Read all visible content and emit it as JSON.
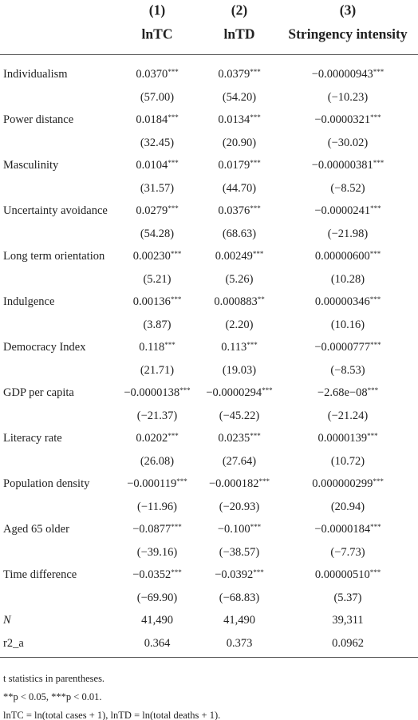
{
  "table": {
    "columns": [
      {
        "number": "(1)",
        "name": "lnTC"
      },
      {
        "number": "(2)",
        "name": "lnTD"
      },
      {
        "number": "(3)",
        "name": "Stringency intensity"
      }
    ],
    "rows": [
      {
        "label": "Individualism",
        "cells": [
          {
            "coef": "0.0370",
            "stars": "***"
          },
          {
            "coef": "0.0379",
            "stars": "***"
          },
          {
            "coef": "−0.00000943",
            "stars": "***"
          }
        ],
        "t": [
          "(57.00)",
          "(54.20)",
          "(−10.23)"
        ]
      },
      {
        "label": "Power distance",
        "cells": [
          {
            "coef": "0.0184",
            "stars": "***"
          },
          {
            "coef": "0.0134",
            "stars": "***"
          },
          {
            "coef": "−0.0000321",
            "stars": "***"
          }
        ],
        "t": [
          "(32.45)",
          "(20.90)",
          "(−30.02)"
        ]
      },
      {
        "label": "Masculinity",
        "cells": [
          {
            "coef": "0.0104",
            "stars": "***"
          },
          {
            "coef": "0.0179",
            "stars": "***"
          },
          {
            "coef": "−0.00000381",
            "stars": "***"
          }
        ],
        "t": [
          "(31.57)",
          "(44.70)",
          "(−8.52)"
        ]
      },
      {
        "label": "Uncertainty avoidance",
        "cells": [
          {
            "coef": "0.0279",
            "stars": "***"
          },
          {
            "coef": "0.0376",
            "stars": "***"
          },
          {
            "coef": "−0.0000241",
            "stars": "***"
          }
        ],
        "t": [
          "(54.28)",
          "(68.63)",
          "(−21.98)"
        ]
      },
      {
        "label": "Long term orientation",
        "cells": [
          {
            "coef": "0.00230",
            "stars": "***"
          },
          {
            "coef": "0.00249",
            "stars": "***"
          },
          {
            "coef": "0.00000600",
            "stars": "***"
          }
        ],
        "t": [
          "(5.21)",
          "(5.26)",
          "(10.28)"
        ]
      },
      {
        "label": "Indulgence",
        "cells": [
          {
            "coef": "0.00136",
            "stars": "***"
          },
          {
            "coef": "0.000883",
            "stars": "**"
          },
          {
            "coef": "0.00000346",
            "stars": "***"
          }
        ],
        "t": [
          "(3.87)",
          "(2.20)",
          "(10.16)"
        ]
      },
      {
        "label": "Democracy Index",
        "cells": [
          {
            "coef": "0.118",
            "stars": "***"
          },
          {
            "coef": "0.113",
            "stars": "***"
          },
          {
            "coef": "−0.0000777",
            "stars": "***"
          }
        ],
        "t": [
          "(21.71)",
          "(19.03)",
          "(−8.53)"
        ]
      },
      {
        "label": "GDP per capita",
        "cells": [
          {
            "coef": "−0.0000138",
            "stars": "***"
          },
          {
            "coef": "−0.0000294",
            "stars": "***"
          },
          {
            "coef": "−2.68e−08",
            "stars": "***"
          }
        ],
        "t": [
          "(−21.37)",
          "(−45.22)",
          "(−21.24)"
        ]
      },
      {
        "label": "Literacy rate",
        "cells": [
          {
            "coef": "0.0202",
            "stars": "***"
          },
          {
            "coef": "0.0235",
            "stars": "***"
          },
          {
            "coef": "0.0000139",
            "stars": "***"
          }
        ],
        "t": [
          "(26.08)",
          "(27.64)",
          "(10.72)"
        ]
      },
      {
        "label": "Population density",
        "cells": [
          {
            "coef": "−0.000119",
            "stars": "***"
          },
          {
            "coef": "−0.000182",
            "stars": "***"
          },
          {
            "coef": "0.000000299",
            "stars": "***"
          }
        ],
        "t": [
          "(−11.96)",
          "(−20.93)",
          "(20.94)"
        ]
      },
      {
        "label": "Aged 65 older",
        "cells": [
          {
            "coef": "−0.0877",
            "stars": "***"
          },
          {
            "coef": "−0.100",
            "stars": "***"
          },
          {
            "coef": "−0.0000184",
            "stars": "***"
          }
        ],
        "t": [
          "(−39.16)",
          "(−38.57)",
          "(−7.73)"
        ]
      },
      {
        "label": "Time difference",
        "cells": [
          {
            "coef": "−0.0352",
            "stars": "***"
          },
          {
            "coef": "−0.0392",
            "stars": "***"
          },
          {
            "coef": "0.00000510",
            "stars": "***"
          }
        ],
        "t": [
          "(−69.90)",
          "(−68.83)",
          "(5.37)"
        ]
      }
    ],
    "stats": [
      {
        "label": "N",
        "values": [
          "41,490",
          "41,490",
          "39,311"
        ]
      },
      {
        "label": "r2_a",
        "values": [
          "0.364",
          "0.373",
          "0.0962"
        ]
      }
    ]
  },
  "notes": [
    "t statistics in parentheses.",
    "**p < 0.05, ***p < 0.01.",
    "lnTC = ln(total cases + 1), lnTD = ln(total deaths + 1)."
  ]
}
